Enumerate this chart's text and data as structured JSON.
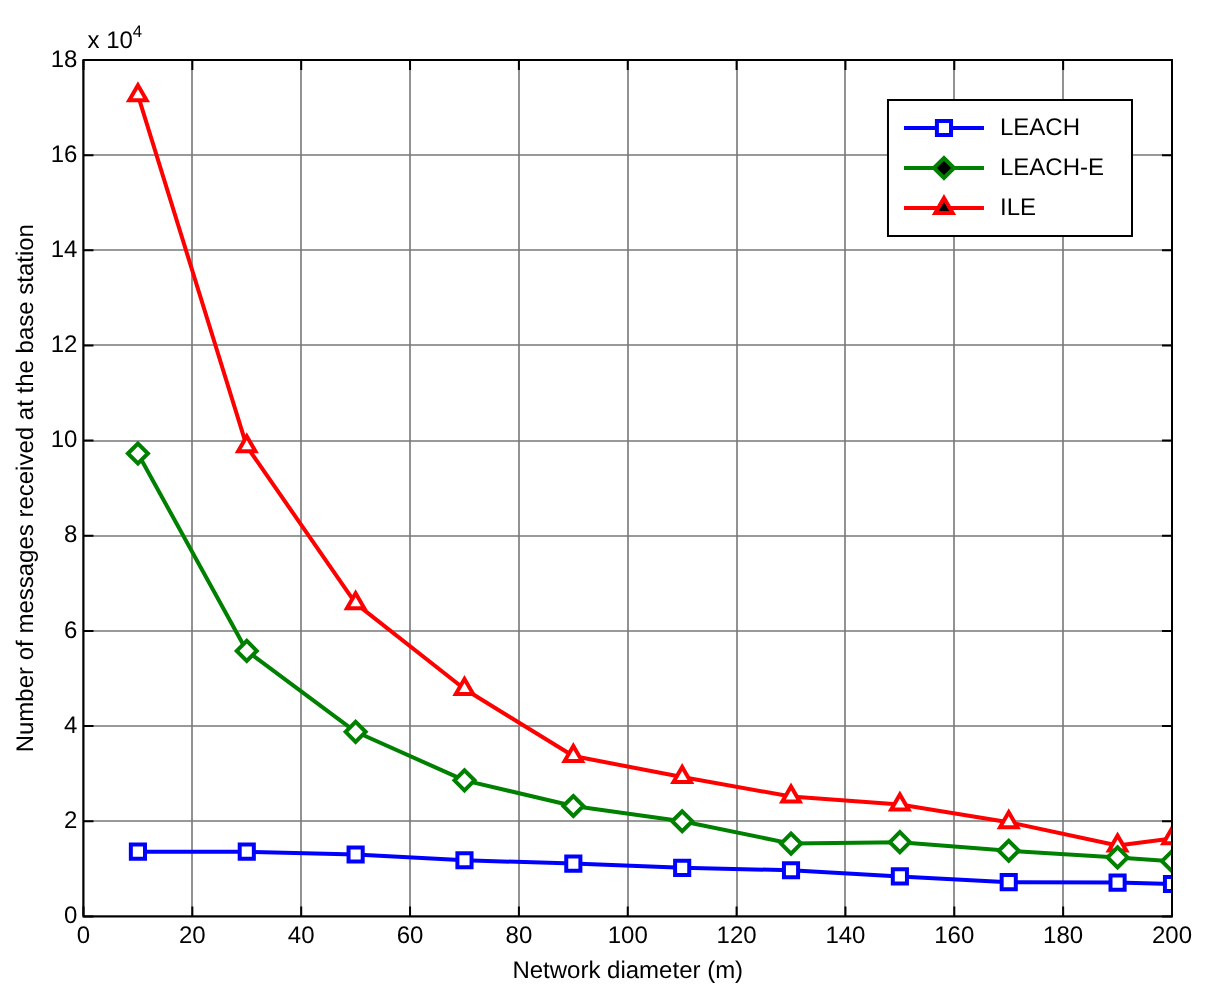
{
  "chart_data": {
    "type": "line",
    "xlabel": "Network diameter (m)",
    "ylabel": "Number of messages received at the base station",
    "x": [
      10,
      30,
      50,
      70,
      90,
      110,
      130,
      150,
      170,
      190,
      200
    ],
    "xlim": [
      0,
      200
    ],
    "xticks": [
      0,
      20,
      40,
      60,
      80,
      100,
      120,
      140,
      160,
      180,
      200
    ],
    "ylim": [
      0,
      18
    ],
    "yticks": [
      0,
      2,
      4,
      6,
      8,
      10,
      12,
      14,
      16,
      18
    ],
    "grid": true,
    "legend": "top right",
    "line_style": "solid",
    "annotations": [
      "x 10$^{4}$"
    ],
    "series": [
      {
        "name": "LEACH",
        "color": "#0000ff",
        "marker": "square",
        "values": [
          1.36,
          1.36,
          1.3,
          1.18,
          1.11,
          1.02,
          0.97,
          0.84,
          0.72,
          0.71,
          0.68
        ]
      },
      {
        "name": "LEACH-E",
        "color": "#008000",
        "marker": "diamond",
        "values": [
          9.73,
          5.58,
          3.88,
          2.86,
          2.32,
          2.0,
          1.53,
          1.56,
          1.38,
          1.24,
          1.16
        ]
      },
      {
        "name": "ILE",
        "color": "#ff0000",
        "marker": "triangle",
        "values": [
          17.26,
          9.88,
          6.58,
          4.78,
          3.37,
          2.93,
          2.52,
          2.35,
          1.98,
          1.49,
          1.64
        ]
      }
    ]
  }
}
